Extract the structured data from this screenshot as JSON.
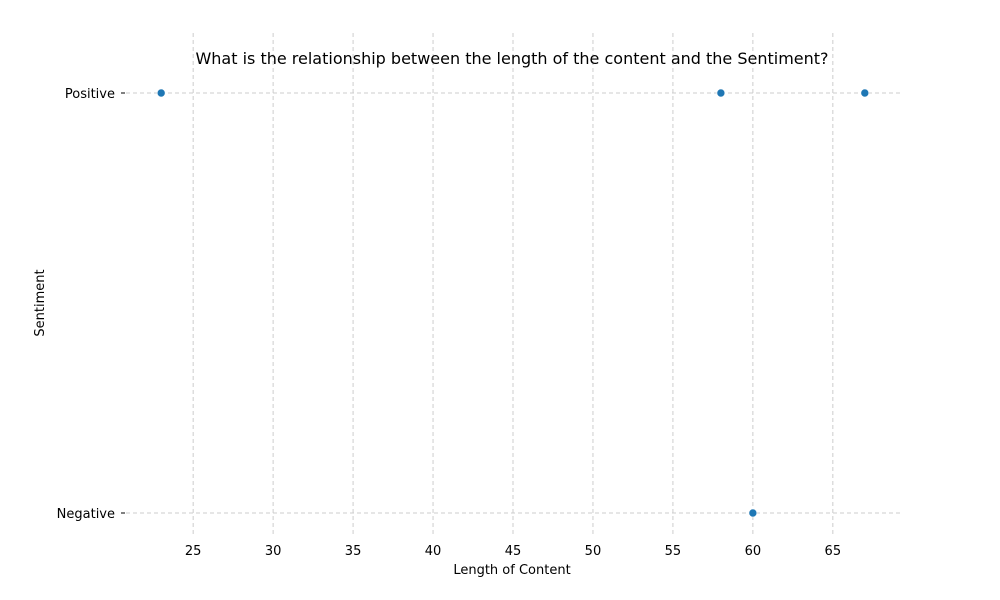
{
  "chart_data": {
    "type": "scatter",
    "title": "What is the relationship between the length of the content and the Sentiment?",
    "xlabel": "Length of Content",
    "ylabel": "Sentiment",
    "xlim": [
      20.8,
      69.2
    ],
    "x_ticks": [
      25,
      30,
      35,
      40,
      45,
      50,
      55,
      60,
      65
    ],
    "y_categories": [
      "Negative",
      "Positive"
    ],
    "grid": true,
    "point_color": "#1f77b4",
    "points": [
      {
        "x": 23,
        "y": "Positive"
      },
      {
        "x": 58,
        "y": "Positive"
      },
      {
        "x": 67,
        "y": "Positive"
      },
      {
        "x": 60,
        "y": "Negative"
      }
    ]
  }
}
